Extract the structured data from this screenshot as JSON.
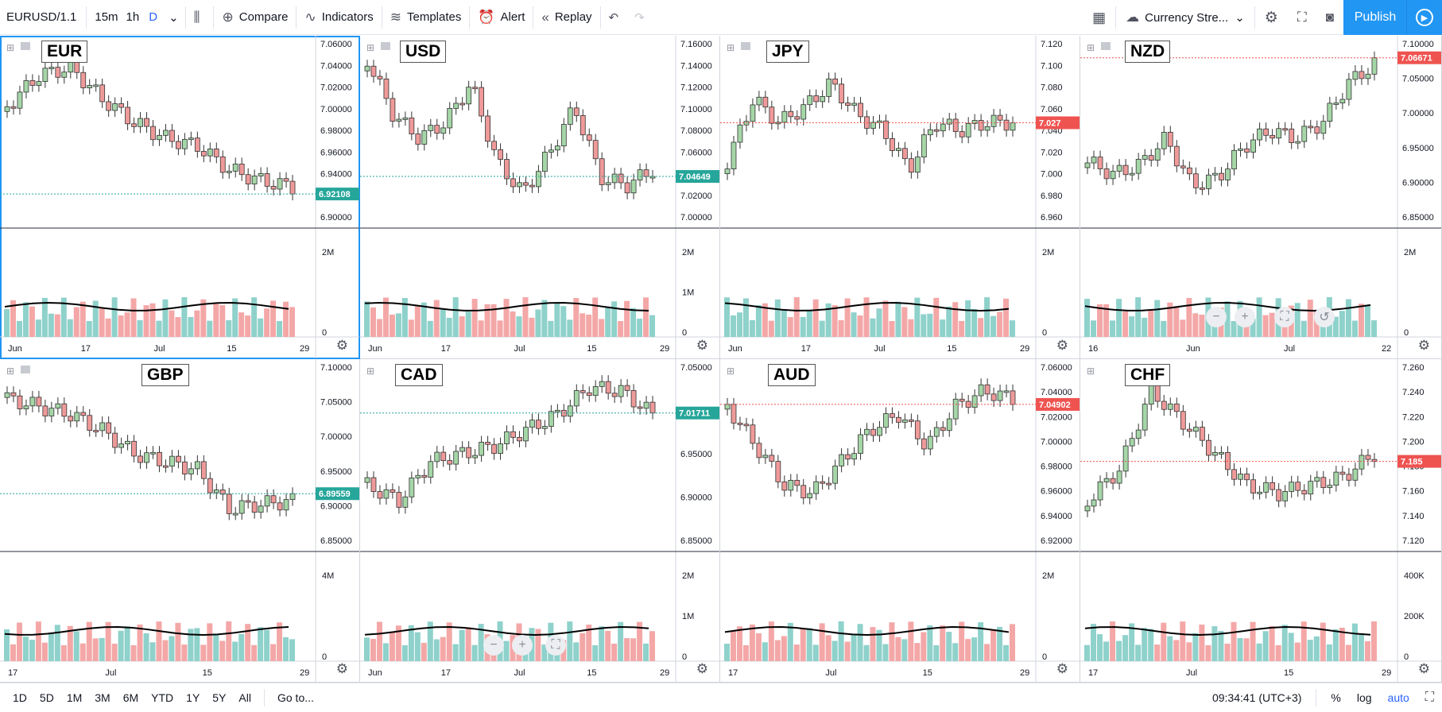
{
  "toolbar": {
    "symbol": "EURUSD/1.1",
    "intervals": [
      "15m",
      "1h",
      "D"
    ],
    "active_interval": "D",
    "compare": "Compare",
    "indicators": "Indicators",
    "templates": "Templates",
    "alert": "Alert",
    "replay": "Replay",
    "layout_name": "Currency Stre...",
    "publish": "Publish"
  },
  "panes": [
    {
      "label": "EUR",
      "price_label": "6.92108",
      "label_color": "#26a69a",
      "prices": [
        "7.06000",
        "7.04000",
        "7.02000",
        "7.00000",
        "6.98000",
        "6.96000",
        "6.94000",
        "6.92000",
        "6.90000"
      ],
      "vol_ticks": [
        "2M",
        "0"
      ],
      "dates": [
        "Jun",
        "17",
        "Jul",
        "15",
        "29"
      ]
    },
    {
      "label": "USD",
      "price_label": "7.04649",
      "label_color": "#26a69a",
      "prices": [
        "7.16000",
        "7.14000",
        "7.12000",
        "7.10000",
        "7.08000",
        "7.06000",
        "7.04000",
        "7.02000",
        "7.00000"
      ],
      "vol_ticks": [
        "2M",
        "1M",
        "0"
      ],
      "dates": [
        "Jun",
        "17",
        "Jul",
        "15",
        "29"
      ]
    },
    {
      "label": "JPY",
      "price_label": "7.027",
      "label_color": "#ef5350",
      "prices": [
        "7.120",
        "7.100",
        "7.080",
        "7.060",
        "7.040",
        "7.020",
        "7.000",
        "6.980",
        "6.960"
      ],
      "vol_ticks": [
        "2M",
        "0"
      ],
      "dates": [
        "Jun",
        "17",
        "Jul",
        "15",
        "29"
      ]
    },
    {
      "label": "NZD",
      "price_label": "7.06671",
      "label_color": "#ef5350",
      "prices": [
        "7.10000",
        "7.05000",
        "7.00000",
        "6.95000",
        "6.90000",
        "6.85000"
      ],
      "vol_ticks": [
        "2M",
        "0"
      ],
      "dates": [
        "16",
        "Jun",
        "Jul",
        "22"
      ]
    },
    {
      "label": "GBP",
      "price_label": "6.89559",
      "label_color": "#26a69a",
      "prices": [
        "7.10000",
        "7.05000",
        "7.00000",
        "6.95000",
        "6.90000",
        "6.85000"
      ],
      "vol_ticks": [
        "4M",
        "0"
      ],
      "dates": [
        "17",
        "Jul",
        "15",
        "29"
      ]
    },
    {
      "label": "CAD",
      "price_label": "7.01711",
      "label_color": "#26a69a",
      "prices": [
        "7.05000",
        "7.00000",
        "6.95000",
        "6.90000",
        "6.85000"
      ],
      "vol_ticks": [
        "2M",
        "1M",
        "0"
      ],
      "dates": [
        "Jun",
        "17",
        "Jul",
        "15",
        "29"
      ]
    },
    {
      "label": "AUD",
      "price_label": "7.04902",
      "label_color": "#ef5350",
      "prices": [
        "7.06000",
        "7.04000",
        "7.02000",
        "7.00000",
        "6.98000",
        "6.96000",
        "6.94000",
        "6.92000"
      ],
      "vol_ticks": [
        "2M",
        "0"
      ],
      "dates": [
        "17",
        "Jul",
        "15",
        "29"
      ]
    },
    {
      "label": "CHF",
      "price_label": "7.185",
      "label_color": "#ef5350",
      "prices": [
        "7.260",
        "7.240",
        "7.220",
        "7.200",
        "7.180",
        "7.160",
        "7.140",
        "7.120"
      ],
      "vol_ticks": [
        "400K",
        "200K",
        "0"
      ],
      "dates": [
        "17",
        "Jul",
        "15",
        "29"
      ]
    }
  ],
  "bottom": {
    "ranges": [
      "1D",
      "5D",
      "1M",
      "3M",
      "6M",
      "YTD",
      "1Y",
      "5Y",
      "All"
    ],
    "goto": "Go to...",
    "time": "09:34:41 (UTC+3)",
    "percent": "%",
    "log": "log",
    "auto": "auto"
  }
}
